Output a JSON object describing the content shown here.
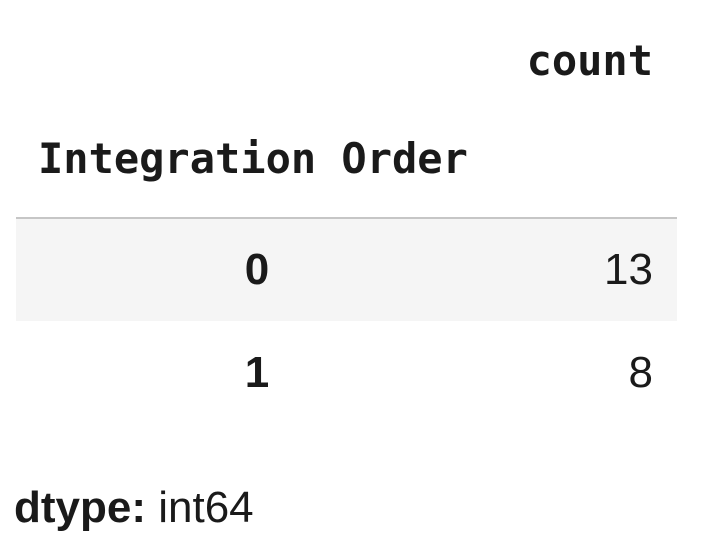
{
  "table": {
    "value_column_header": "count",
    "index_name": "Integration Order",
    "rows": [
      {
        "index": "0",
        "count": "13"
      },
      {
        "index": "1",
        "count": "8"
      }
    ]
  },
  "footer": {
    "dtype_label": "dtype:",
    "dtype_value": "int64"
  },
  "colors": {
    "text": "#1a1a1a",
    "row_stripe_bg": "#f5f5f5",
    "table_border": "#c6c6c6",
    "background": "#ffffff"
  },
  "chart_data": {
    "type": "table",
    "columns": [
      "Integration Order",
      "count"
    ],
    "rows": [
      [
        0,
        13
      ],
      [
        1,
        8
      ]
    ],
    "footer": "dtype: int64"
  }
}
